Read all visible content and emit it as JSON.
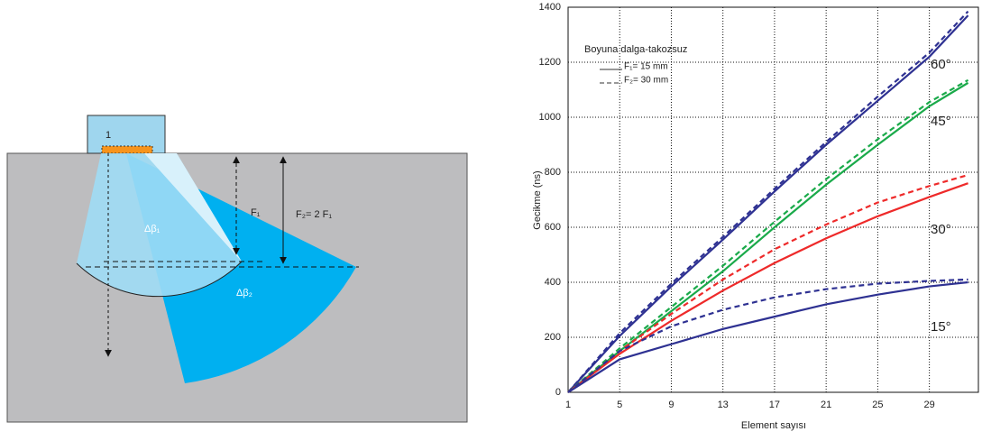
{
  "diagram": {
    "element_index": "1",
    "f1": "F₁",
    "f2": "F₂= 2 F₁",
    "beam1": "Δβ₁",
    "beam2": "Δβ₂"
  },
  "chart_data": {
    "type": "line",
    "y_label": "Gecikme (ns)",
    "x_label": "Element sayısı",
    "legend_title": "Boyuna dalga-takozsuz",
    "legend": [
      {
        "label": "F₁= 15 mm",
        "dash": false
      },
      {
        "label": "F₂= 30 mm",
        "dash": true
      }
    ],
    "x": [
      1,
      5,
      9,
      13,
      17,
      21,
      25,
      29,
      32
    ],
    "series": [
      {
        "name": "60°",
        "color": "#2e3192",
        "values": [
          0,
          205,
          385,
          555,
          730,
          900,
          1060,
          1220,
          1370
        ],
        "values_f2": [
          0,
          215,
          395,
          565,
          740,
          910,
          1075,
          1235,
          1385
        ]
      },
      {
        "name": "45°",
        "color": "#1aaa4a",
        "values": [
          0,
          150,
          295,
          440,
          600,
          755,
          900,
          1040,
          1125
        ],
        "values_f2": [
          0,
          160,
          310,
          460,
          620,
          775,
          920,
          1055,
          1135
        ]
      },
      {
        "name": "30°",
        "color": "#ee2a2a",
        "values": [
          0,
          140,
          260,
          370,
          470,
          560,
          640,
          710,
          760
        ],
        "values_f2": [
          0,
          150,
          285,
          410,
          520,
          610,
          690,
          750,
          790
        ]
      },
      {
        "name": "15°",
        "color": "#2e3192",
        "values": [
          0,
          120,
          175,
          230,
          275,
          320,
          355,
          385,
          400
        ],
        "values_f2": [
          0,
          150,
          240,
          300,
          345,
          375,
          395,
          405,
          410
        ]
      }
    ],
    "xlim": [
      1,
      32.8
    ],
    "ylim": [
      0,
      1400
    ],
    "xticks": [
      1,
      5,
      9,
      13,
      17,
      21,
      25,
      29
    ],
    "yticks": [
      0,
      200,
      400,
      600,
      800,
      1000,
      1200,
      1400
    ],
    "grid": true
  }
}
